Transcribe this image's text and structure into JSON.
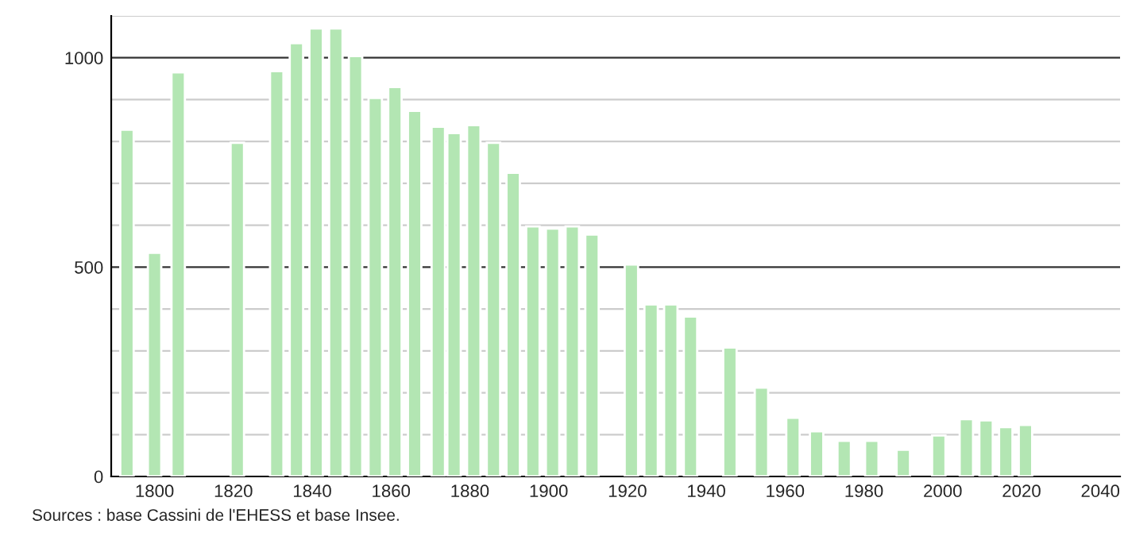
{
  "chart_data": {
    "type": "bar",
    "x": [
      1793,
      1800,
      1806,
      1821,
      1831,
      1836,
      1841,
      1846,
      1851,
      1856,
      1861,
      1866,
      1872,
      1876,
      1881,
      1886,
      1891,
      1896,
      1901,
      1906,
      1911,
      1921,
      1926,
      1931,
      1936,
      1946,
      1954,
      1962,
      1968,
      1975,
      1982,
      1990,
      1999,
      2006,
      2011,
      2016,
      2021
    ],
    "values": [
      828,
      534,
      965,
      797,
      968,
      1035,
      1070,
      1070,
      1004,
      904,
      930,
      873,
      835,
      820,
      839,
      797,
      725,
      597,
      592,
      597,
      578,
      506,
      411,
      411,
      382,
      308,
      212,
      140,
      108,
      85,
      85,
      64,
      98,
      137,
      134,
      118,
      123
    ],
    "color": "#b3e6b3",
    "xlim": [
      1789,
      2045
    ],
    "xticks": [
      1800,
      1820,
      1840,
      1860,
      1880,
      1900,
      1920,
      1940,
      1960,
      1980,
      2000,
      2020,
      2040
    ],
    "ylim": [
      0,
      1100
    ],
    "yticks": [
      0,
      {
        "value": 100,
        "label": null
      },
      {
        "value": 200,
        "label": null
      },
      {
        "value": 300,
        "label": null
      },
      {
        "value": 400,
        "label": null
      },
      500,
      {
        "value": 600,
        "label": null
      },
      {
        "value": 700,
        "label": null
      },
      {
        "value": 800,
        "label": null
      },
      {
        "value": 900,
        "label": null
      },
      1000,
      {
        "value": 1100,
        "label": null
      }
    ],
    "grid": "y",
    "annotations": [
      "Sources : base Cassini de l'EHESS et base Insee."
    ]
  }
}
